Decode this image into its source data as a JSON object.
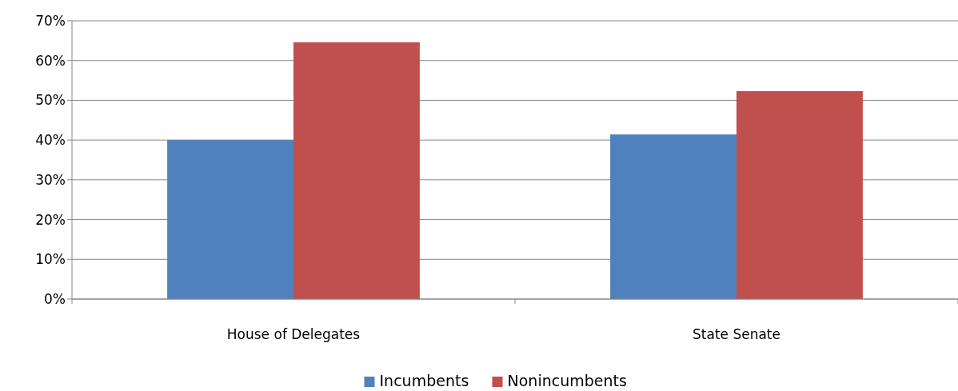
{
  "chart_data": {
    "type": "bar",
    "categories": [
      "House of Delegates",
      "State Senate"
    ],
    "series": [
      {
        "name": "Incumbents",
        "color": "#4f81bd",
        "values": [
          40.0,
          41.4
        ]
      },
      {
        "name": "Nonincumbents",
        "color": "#c0504d",
        "values": [
          64.6,
          52.3
        ]
      }
    ],
    "ylim": [
      0,
      70
    ],
    "yticks": [
      {
        "value": 0,
        "label": "0%"
      },
      {
        "value": 10,
        "label": "10%"
      },
      {
        "value": 20,
        "label": "20%"
      },
      {
        "value": 30,
        "label": "30%"
      },
      {
        "value": 40,
        "label": "40%"
      },
      {
        "value": 50,
        "label": "50%"
      },
      {
        "value": 60,
        "label": "60%"
      },
      {
        "value": 70,
        "label": "70%"
      }
    ],
    "grid": "y",
    "legend": "bottom"
  }
}
